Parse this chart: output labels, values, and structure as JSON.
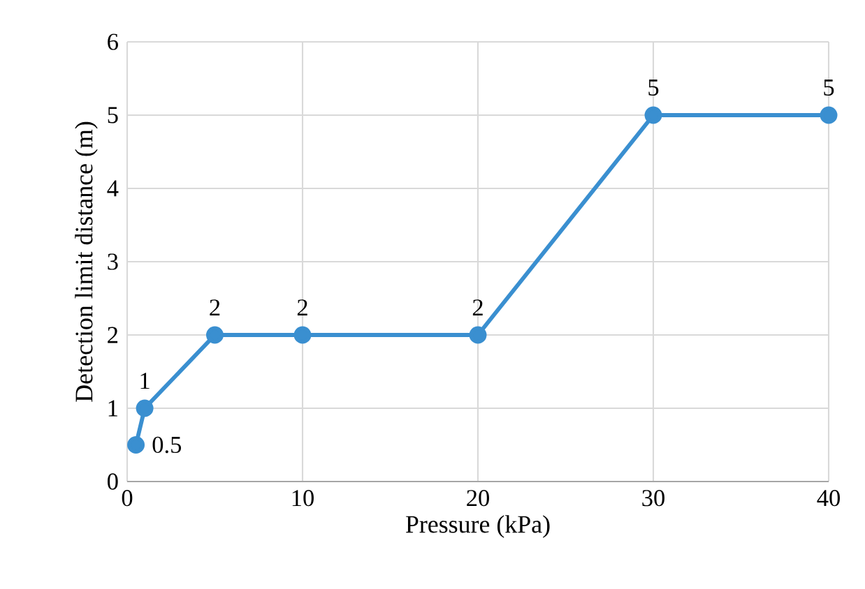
{
  "chart_data": {
    "type": "line",
    "xlabel": "Pressure (kPa)",
    "ylabel": "Detection limit distance (m)",
    "x": [
      0.5,
      1,
      5,
      10,
      20,
      30,
      40
    ],
    "values": [
      0.5,
      1,
      2,
      2,
      2,
      5,
      5
    ],
    "color": "#3a8fd0",
    "xlim": [
      0,
      40
    ],
    "xticks": [
      0,
      10,
      20,
      30,
      40
    ],
    "ylim": [
      0,
      6
    ],
    "yticks": [
      0,
      1,
      2,
      3,
      4,
      5,
      6
    ],
    "grid": true,
    "marker": "circle",
    "line_style": "solid",
    "data_labels": true
  }
}
